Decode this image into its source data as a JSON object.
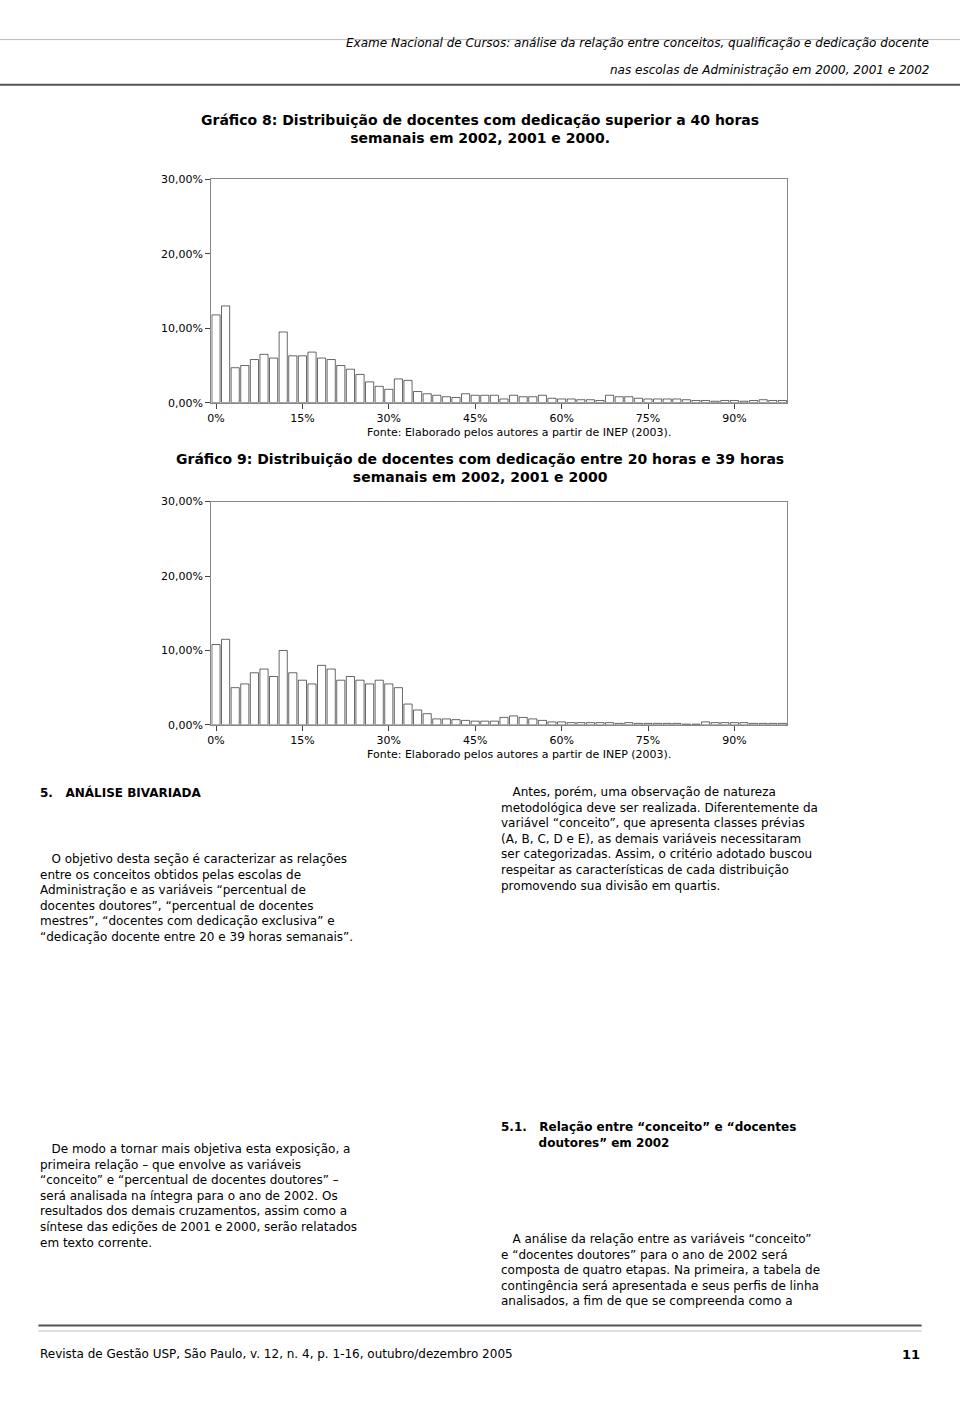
{
  "chart_data": [
    {
      "type": "bar",
      "title": "Gráfico 8: Distribuição de docentes com dedicação superior a 40 horas\nsemanais em 2002, 2001 e 2000.",
      "categories": [
        "0%",
        null,
        null,
        null,
        null,
        null,
        null,
        null,
        null,
        "15%",
        null,
        null,
        null,
        null,
        null,
        null,
        null,
        null,
        "30%",
        null,
        null,
        null,
        null,
        null,
        null,
        null,
        null,
        "45%",
        null,
        null,
        null,
        null,
        null,
        null,
        null,
        null,
        "60%",
        null,
        null,
        null,
        null,
        null,
        null,
        null,
        null,
        "75%",
        null,
        null,
        null,
        null,
        null,
        null,
        null,
        null,
        "90%",
        null,
        null,
        null,
        null,
        null
      ],
      "values": [
        0.118,
        0.13,
        0.047,
        0.05,
        0.058,
        0.065,
        0.06,
        0.095,
        0.063,
        0.063,
        0.068,
        0.06,
        0.058,
        0.05,
        0.045,
        0.038,
        0.028,
        0.022,
        0.018,
        0.032,
        0.03,
        0.015,
        0.012,
        0.01,
        0.008,
        0.007,
        0.012,
        0.01,
        0.01,
        0.01,
        0.005,
        0.01,
        0.008,
        0.008,
        0.01,
        0.006,
        0.005,
        0.005,
        0.004,
        0.004,
        0.003,
        0.01,
        0.008,
        0.008,
        0.006,
        0.005,
        0.005,
        0.005,
        0.005,
        0.004,
        0.003,
        0.003,
        0.002,
        0.003,
        0.003,
        0.002,
        0.003,
        0.004,
        0.003,
        0.003
      ],
      "color": "#ffffff",
      "ylim": [
        0,
        0.3
      ],
      "yticks": [
        {
          "value": 0.0,
          "label": "0,00%"
        },
        {
          "value": 0.1,
          "label": "10,00%"
        },
        {
          "value": 0.2,
          "label": "20,00%"
        },
        {
          "value": 0.3,
          "label": "30,00%"
        }
      ],
      "grid": false,
      "annotations": [
        "Exame Nacional de Cursos: análise da relação entre conceitos, qualificação e dedicação docente",
        "nas escolas de Administração em 2000, 2001 e 2002",
        "Fonte: Elaborado pelos autores a partir de INEP (2003)."
      ]
    },
    {
      "type": "bar",
      "title": "Gráfico 9: Distribuição de docentes com dedicação entre 20 horas e 39 horas\nsemanais em 2002, 2001 e 2000",
      "categories": [
        "0%",
        null,
        null,
        null,
        null,
        null,
        null,
        null,
        null,
        "15%",
        null,
        null,
        null,
        null,
        null,
        null,
        null,
        null,
        "30%",
        null,
        null,
        null,
        null,
        null,
        null,
        null,
        null,
        "45%",
        null,
        null,
        null,
        null,
        null,
        null,
        null,
        null,
        "60%",
        null,
        null,
        null,
        null,
        null,
        null,
        null,
        null,
        "75%",
        null,
        null,
        null,
        null,
        null,
        null,
        null,
        null,
        "90%",
        null,
        null,
        null,
        null,
        null
      ],
      "values": [
        0.108,
        0.115,
        0.05,
        0.055,
        0.07,
        0.075,
        0.065,
        0.1,
        0.07,
        0.06,
        0.055,
        0.08,
        0.075,
        0.06,
        0.065,
        0.06,
        0.055,
        0.06,
        0.055,
        0.05,
        0.028,
        0.02,
        0.015,
        0.008,
        0.008,
        0.007,
        0.006,
        0.005,
        0.005,
        0.005,
        0.01,
        0.012,
        0.01,
        0.008,
        0.006,
        0.004,
        0.004,
        0.003,
        0.003,
        0.003,
        0.003,
        0.003,
        0.002,
        0.003,
        0.002,
        0.002,
        0.002,
        0.002,
        0.002,
        0.001,
        0.001,
        0.004,
        0.003,
        0.003,
        0.003,
        0.003,
        0.002,
        0.002,
        0.002,
        0.002
      ],
      "color": "#ffffff",
      "ylim": [
        0,
        0.3
      ],
      "yticks": [
        {
          "value": 0.0,
          "label": "0,00%"
        },
        {
          "value": 0.1,
          "label": "10,00%"
        },
        {
          "value": 0.2,
          "label": "20,00%"
        },
        {
          "value": 0.3,
          "label": "30,00%"
        }
      ],
      "grid": false,
      "annotations": [
        "Fonte: Elaborado pelos autores a partir de INEP (2003).",
        "5.   ANÁLISE BIVARIADA",
        "   O objetivo desta seção é caracterizar as relações\nentre os conceitos obtidos pelas escolas de\nAdministração e as variáveis “percentual de\ndocentes doutores”, “percentual de docentes\nmestres”, “docentes com dedicação exclusiva” e\n“dedicação docente entre 20 e 39 horas semanais”.",
        "   De modo a tornar mais objetiva esta exposição, a\nprimeira relação – que envolve as variáveis\n“conceito” e “percentual de docentes doutores” –\nserá analisada na íntegra para o ano de 2002. Os\nresultados dos demais cruzamentos, assim como a\nsíntese das edições de 2001 e 2000, serão relatados\nem texto corrente.",
        "   Antes, porém, uma observação de natureza\nmetodológica deve ser realizada. Diferentemente da\nvariável “conceito”, que apresenta classes prévias\n(A, B, C, D e E), as demais variáveis necessitaram\nser categorizadas. Assim, o critério adotado buscou\nrespeitar as características de cada distribuição\npromovendo sua divisão em quartis.",
        "5.1.   Relação entre “conceito” e “docentes\n         doutores” em 2002",
        "   A análise da relação entre as variáveis “conceito”\ne “docentes doutores” para o ano de 2002 será\ncomposta de quatro etapas. Na primeira, a tabela de\ncontingência será apresentada e seus perfis de linha\nanalisados, a fim de que se compreenda como a",
        "Revista de Gestão USP, São Paulo, v. 12, n. 4, p. 1-16, outubro/dezembro 2005",
        "11"
      ]
    }
  ]
}
